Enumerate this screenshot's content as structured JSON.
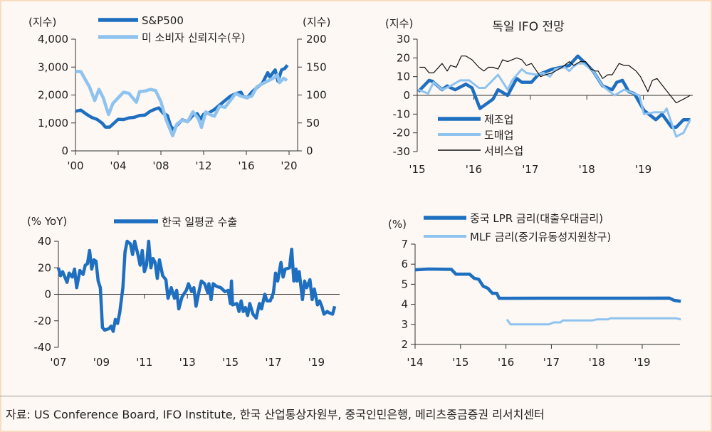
{
  "chart_data": [
    {
      "type": "line",
      "id": "sp500",
      "unit_left": "(지수)",
      "unit_right": "(지수)",
      "xticks": [
        "'00",
        "'04",
        "'08",
        "'12",
        "'16",
        "'20"
      ],
      "xtick_values": [
        2000,
        2004,
        2008,
        2012,
        2016,
        2020
      ],
      "ylim": [
        0,
        4000
      ],
      "yticks": [
        "4,000",
        "3,000",
        "2,000",
        "1,000",
        "0"
      ],
      "ytick_values": [
        4000,
        3000,
        2000,
        1000,
        0
      ],
      "ylim_right": [
        0,
        200
      ],
      "yticks_right": [
        "200",
        "150",
        "100",
        "50",
        "0"
      ],
      "ytick_values_right": [
        200,
        150,
        100,
        50,
        0
      ],
      "legend_placement": "top",
      "series": [
        {
          "name": "S&P500",
          "axis": "left",
          "color": "#1f6fc0",
          "style": "thick",
          "x": [
            2000,
            2000.5,
            2001,
            2001.5,
            2002,
            2002.5,
            2002.8,
            2003.2,
            2003.6,
            2004,
            2004.5,
            2005,
            2005.5,
            2006,
            2006.5,
            2007,
            2007.5,
            2007.8,
            2008.2,
            2008.6,
            2008.9,
            2009.2,
            2009.5,
            2010,
            2010.5,
            2011,
            2011.4,
            2011.7,
            2012,
            2012.5,
            2013,
            2013.5,
            2014,
            2014.5,
            2015,
            2015.5,
            2015.7,
            2016.1,
            2016.5,
            2017,
            2017.5,
            2018,
            2018.2,
            2018.7,
            2018.95,
            2019.3,
            2019.6,
            2019.85
          ],
          "y": [
            1420,
            1460,
            1320,
            1200,
            1130,
            990,
            850,
            850,
            990,
            1130,
            1120,
            1180,
            1200,
            1270,
            1280,
            1420,
            1500,
            1540,
            1350,
            1270,
            900,
            750,
            920,
            1110,
            1050,
            1280,
            1330,
            1130,
            1310,
            1360,
            1480,
            1640,
            1800,
            1960,
            2050,
            2100,
            1950,
            1900,
            2100,
            2270,
            2420,
            2800,
            2650,
            2900,
            2500,
            2900,
            2950,
            3070
          ]
        },
        {
          "name": "미 소비자 신뢰지수(우)",
          "axis": "right",
          "color": "#8ec3ef",
          "style": "thick",
          "x": [
            2000,
            2000.5,
            2001,
            2001.3,
            2001.8,
            2002.2,
            2002.6,
            2003.1,
            2003.5,
            2004,
            2004.5,
            2005,
            2005.7,
            2006,
            2006.5,
            2007,
            2007.5,
            2008,
            2008.5,
            2009.1,
            2009.5,
            2010,
            2010.5,
            2011,
            2011.5,
            2011.8,
            2012.2,
            2012.6,
            2013,
            2013.5,
            2014,
            2014.5,
            2015,
            2015.5,
            2016,
            2016.5,
            2017,
            2017.5,
            2018,
            2018.5,
            2018.9,
            2019.1,
            2019.5,
            2019.8
          ],
          "y": [
            142,
            142,
            125,
            115,
            90,
            110,
            95,
            65,
            85,
            95,
            105,
            103,
            87,
            106,
            107,
            110,
            108,
            88,
            55,
            27,
            48,
            55,
            52,
            70,
            58,
            42,
            70,
            65,
            62,
            80,
            78,
            90,
            103,
            98,
            95,
            98,
            115,
            120,
            125,
            130,
            136,
            122,
            130,
            126
          ]
        }
      ]
    },
    {
      "type": "line",
      "id": "ifo",
      "title": "독일 IFO 전망",
      "unit_left": "(지수)",
      "xticks": [
        "'15",
        "'16",
        "'17",
        "'18",
        "'19"
      ],
      "xtick_values": [
        2015,
        2016,
        2017,
        2018,
        2019
      ],
      "ylim": [
        -30,
        30
      ],
      "yticks": [
        "30",
        "20",
        "10",
        "0",
        "-10",
        "-20",
        "-30"
      ],
      "ytick_values": [
        30,
        20,
        10,
        0,
        -10,
        -20,
        -30
      ],
      "legend_placement": "bottom-left",
      "series": [
        {
          "name": "제조업",
          "color": "#1f6fc0",
          "style": "thick",
          "x": [
            2015.02,
            2015.21,
            2015.27,
            2015.44,
            2015.53,
            2015.67,
            2015.86,
            2015.97,
            2016.11,
            2016.34,
            2016.43,
            2016.6,
            2016.76,
            2016.85,
            2017.02,
            2017.14,
            2017.39,
            2017.56,
            2017.69,
            2017.84,
            2017.98,
            2018.11,
            2018.28,
            2018.45,
            2018.53,
            2018.63,
            2018.74,
            2018.84,
            2019.01,
            2019.22,
            2019.33,
            2019.5,
            2019.58,
            2019.71,
            2019.83
          ],
          "y": [
            2,
            8,
            7.5,
            3,
            5,
            3,
            6,
            4,
            -7,
            -2,
            3,
            0,
            9,
            7,
            7,
            11,
            14,
            15,
            16,
            21,
            17,
            13,
            5,
            3,
            7,
            8,
            2,
            1,
            -8,
            -13,
            -10,
            -17,
            -17,
            -13,
            -13
          ]
        },
        {
          "name": "도매업",
          "color": "#8ec3ef",
          "style": "medium",
          "x": [
            2015.02,
            2015.19,
            2015.29,
            2015.44,
            2015.59,
            2015.76,
            2015.92,
            2016.09,
            2016.2,
            2016.3,
            2016.43,
            2016.6,
            2016.68,
            2016.85,
            2016.93,
            2017.1,
            2017.23,
            2017.35,
            2017.44,
            2017.61,
            2017.69,
            2017.75,
            2017.84,
            2017.94,
            2018.11,
            2018.28,
            2018.49,
            2018.66,
            2018.84,
            2018.93,
            2019.01,
            2019.2,
            2019.37,
            2019.41,
            2019.58,
            2019.71,
            2019.83
          ],
          "y": [
            3,
            1,
            7,
            3,
            5,
            8,
            8,
            4,
            4,
            7,
            11,
            3,
            8,
            14,
            12,
            11,
            12,
            10,
            14,
            15,
            13,
            15,
            17,
            17,
            13,
            5,
            0,
            3,
            1,
            0,
            -10,
            -9,
            -9,
            -7,
            -22,
            -20,
            -13
          ]
        },
        {
          "name": "서비스업",
          "color": "#111111",
          "style": "thin",
          "x": [
            2015.04,
            2015.13,
            2015.21,
            2015.29,
            2015.44,
            2015.53,
            2015.59,
            2015.69,
            2015.78,
            2015.86,
            2015.97,
            2016.09,
            2016.18,
            2016.26,
            2016.34,
            2016.43,
            2016.51,
            2016.6,
            2016.76,
            2016.85,
            2016.93,
            2017.02,
            2017.18,
            2017.27,
            2017.39,
            2017.56,
            2017.69,
            2017.77,
            2017.88,
            2017.98,
            2018.07,
            2018.15,
            2018.2,
            2018.28,
            2018.37,
            2018.45,
            2018.57,
            2018.66,
            2018.74,
            2018.87,
            2018.95,
            2019.08,
            2019.16,
            2019.24,
            2019.37,
            2019.45,
            2019.58,
            2019.71,
            2019.83
          ],
          "y": [
            15,
            15,
            12,
            12,
            17,
            13,
            16,
            15,
            21,
            21,
            19,
            15,
            13,
            15,
            15,
            14,
            19,
            18,
            20,
            19,
            16,
            17,
            10,
            11,
            12,
            15,
            18,
            16,
            18,
            18,
            14,
            13,
            13,
            9,
            11,
            11,
            17,
            16,
            16,
            13,
            10,
            2,
            8,
            9,
            4,
            1,
            -4,
            -2,
            0
          ]
        }
      ]
    },
    {
      "type": "line",
      "id": "korea-exports",
      "unit_left": "(% YoY)",
      "xticks": [
        "'07",
        "'09",
        "'11",
        "'13",
        "'15",
        "'17",
        "'19"
      ],
      "xtick_values": [
        2007,
        2009,
        2011,
        2013,
        2015,
        2017,
        2019
      ],
      "ylim": [
        -40,
        40
      ],
      "yticks": [
        "40",
        "20",
        "0",
        "-20",
        "-40"
      ],
      "ytick_values": [
        40,
        20,
        0,
        -20,
        -40
      ],
      "legend_placement": "top",
      "series": [
        {
          "name": "한국 일평균 수출",
          "color": "#1f6fc0",
          "style": "thick",
          "x": [
            2007,
            2007.1,
            2007.2,
            2007.4,
            2007.5,
            2007.65,
            2007.75,
            2007.85,
            2008,
            2008.15,
            2008.25,
            2008.35,
            2008.45,
            2008.55,
            2008.65,
            2008.75,
            2008.85,
            2008.95,
            2009.05,
            2009.15,
            2009.35,
            2009.45,
            2009.55,
            2009.65,
            2009.75,
            2009.85,
            2010,
            2010.1,
            2010.2,
            2010.35,
            2010.45,
            2010.55,
            2010.7,
            2010.8,
            2010.9,
            2011,
            2011.1,
            2011.2,
            2011.3,
            2011.4,
            2011.5,
            2011.6,
            2011.7,
            2011.85,
            2012,
            2012.1,
            2012.25,
            2012.4,
            2012.5,
            2012.6,
            2012.75,
            2012.95,
            2013.05,
            2013.2,
            2013.3,
            2013.4,
            2013.55,
            2013.65,
            2013.8,
            2013.95,
            2014,
            2014.1,
            2014.2,
            2014.35,
            2014.55,
            2014.75,
            2014.9,
            2015,
            2015.05,
            2015.1,
            2015.3,
            2015.4,
            2015.5,
            2015.6,
            2015.7,
            2015.8,
            2015.9,
            2016.05,
            2016.2,
            2016.35,
            2016.45,
            2016.6,
            2016.7,
            2016.85,
            2017,
            2017.1,
            2017.2,
            2017.35,
            2017.45,
            2017.55,
            2017.75,
            2017.85,
            2017.95,
            2018.05,
            2018.1,
            2018.2,
            2018.35,
            2018.45,
            2018.55,
            2018.7,
            2018.8,
            2018.9,
            2019.05,
            2019.15,
            2019.25,
            2019.35,
            2019.5,
            2019.6,
            2019.75,
            2019.85
          ],
          "y": [
            20,
            14,
            17,
            9,
            16,
            13,
            19,
            5,
            18,
            15,
            22,
            23,
            33,
            19,
            26,
            25,
            10,
            5,
            -25,
            -27,
            -26,
            -24,
            -28,
            -19,
            -22,
            -14,
            5,
            32,
            40,
            38,
            30,
            40,
            30,
            22,
            33,
            17,
            22,
            40,
            20,
            27,
            24,
            12,
            26,
            14,
            11,
            -3,
            5,
            -3,
            3,
            -11,
            -2,
            3,
            8,
            2,
            5,
            -9,
            3,
            10,
            8,
            1,
            8,
            -4,
            8,
            6,
            5,
            2,
            3,
            -7,
            10,
            -8,
            -7,
            -13,
            -5,
            -13,
            -10,
            -16,
            -7,
            -15,
            -18,
            -7,
            -11,
            0,
            -5,
            -5,
            1,
            16,
            10,
            24,
            13,
            19,
            20,
            34,
            10,
            19,
            10,
            17,
            -4,
            10,
            5,
            11,
            -4,
            4,
            -8,
            -5,
            -9,
            -15,
            -13,
            -14,
            -15,
            -9
          ]
        }
      ]
    },
    {
      "type": "line",
      "id": "china-rates",
      "unit_left": "(%)",
      "xticks": [
        "'14",
        "'15",
        "'16",
        "'17",
        "'18",
        "'19"
      ],
      "xtick_values": [
        2014,
        2015,
        2016,
        2017,
        2018,
        2019
      ],
      "ylim": [
        2,
        7
      ],
      "yticks": [
        "7",
        "6",
        "5",
        "4",
        "3",
        "2"
      ],
      "ytick_values": [
        7,
        6,
        5,
        4,
        3,
        2
      ],
      "legend_placement": "top",
      "series": [
        {
          "name": "중국 LPR 금리(대출우대금리)",
          "color": "#1f6fc0",
          "style": "thick",
          "x": [
            2014,
            2014.3,
            2014.8,
            2014.9,
            2015.2,
            2015.3,
            2015.4,
            2015.5,
            2015.6,
            2015.7,
            2015.8,
            2015.85,
            2019.6,
            2019.7,
            2019.85
          ],
          "y": [
            5.72,
            5.76,
            5.74,
            5.5,
            5.5,
            5.3,
            5.25,
            4.9,
            4.8,
            4.55,
            4.55,
            4.3,
            4.31,
            4.2,
            4.15
          ]
        },
        {
          "name": "MLF 금리(중기유동성지원창구)",
          "color": "#8ec3ef",
          "style": "medium",
          "x": [
            2016.02,
            2016.1,
            2016.95,
            2017.05,
            2017.2,
            2017.25,
            2017.9,
            2018.0,
            2018.25,
            2018.3,
            2019.75,
            2019.85
          ],
          "y": [
            3.25,
            3.0,
            3.0,
            3.1,
            3.1,
            3.2,
            3.2,
            3.25,
            3.25,
            3.3,
            3.3,
            3.25
          ]
        }
      ]
    }
  ],
  "footer": {
    "source": "자료: US Conference Board, IFO Institute, 한국 산업통상자원부, 중국인민은행, 메리츠종금증권 리서치센터"
  }
}
